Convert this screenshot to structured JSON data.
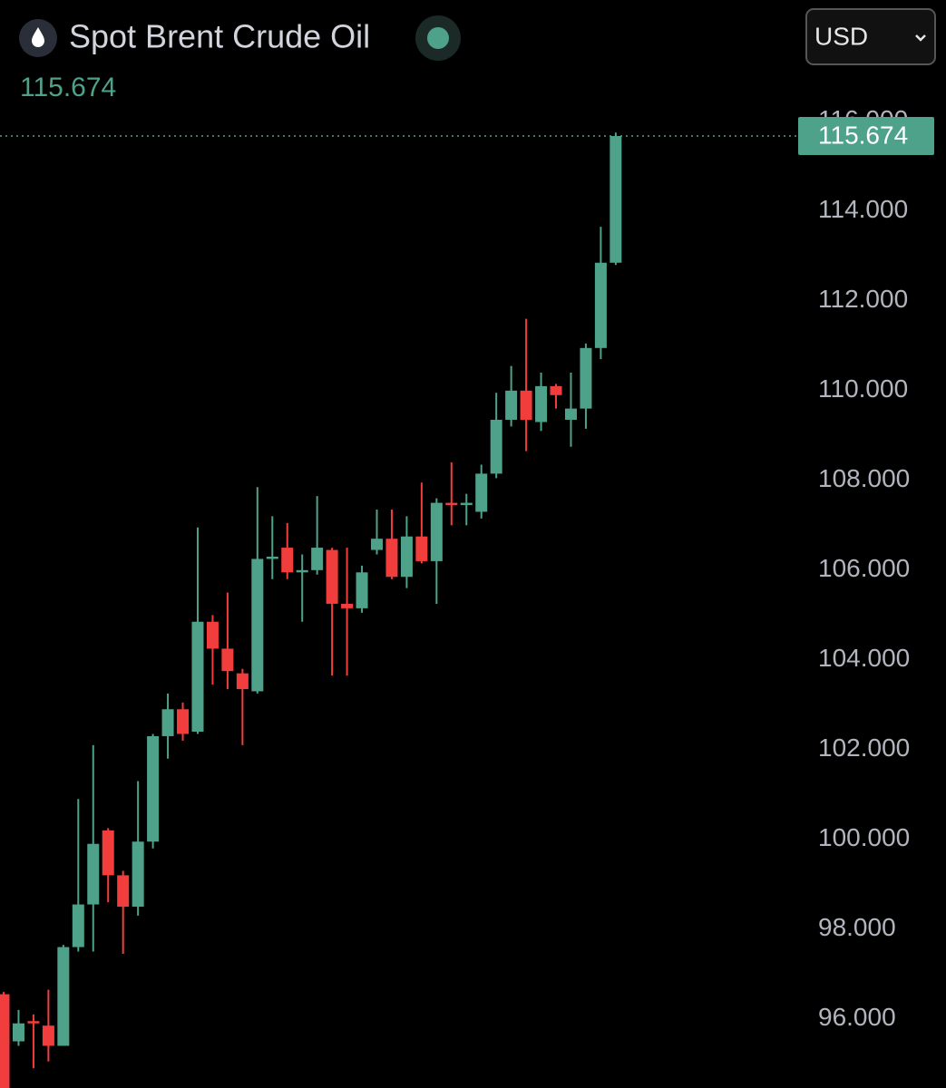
{
  "chart_data": {
    "type": "candlestick",
    "title": "Spot Brent Crude Oil",
    "currency": "USD",
    "last_price": 115.674,
    "last_price_label": "115.674",
    "up_color": "#4fa28a",
    "down_color": "#f23d3d",
    "ylim": [
      94.46,
      116.28
    ],
    "yticks": [
      {
        "value": 96,
        "label": "96.000"
      },
      {
        "value": 98,
        "label": "98.000"
      },
      {
        "value": 100,
        "label": "100.000"
      },
      {
        "value": 102,
        "label": "102.000"
      },
      {
        "value": 104,
        "label": "104.000"
      },
      {
        "value": 106,
        "label": "106.000"
      },
      {
        "value": 108,
        "label": "108.000"
      },
      {
        "value": 110,
        "label": "110.000"
      },
      {
        "value": 112,
        "label": "112.000"
      },
      {
        "value": 114,
        "label": "114.000"
      },
      {
        "value": 116,
        "label": "116.000"
      }
    ],
    "open": [
      96.55,
      95.5,
      95.95,
      95.85,
      95.4,
      97.6,
      98.55,
      100.2,
      99.2,
      98.5,
      99.95,
      102.3,
      102.9,
      102.4,
      104.85,
      104.25,
      103.7,
      103.3,
      106.25,
      106.5,
      105.95,
      106.0,
      106.45,
      105.25,
      105.15,
      106.45,
      106.7,
      105.85,
      106.75,
      106.2,
      107.5,
      107.45,
      107.3,
      108.15,
      109.35,
      110.0,
      109.3,
      110.1,
      109.35,
      109.6,
      110.95,
      112.85
    ],
    "high": [
      96.6,
      96.2,
      96.1,
      96.65,
      97.65,
      100.9,
      102.1,
      100.25,
      99.3,
      101.3,
      102.35,
      103.25,
      103.05,
      106.95,
      105.0,
      105.5,
      103.8,
      107.85,
      107.2,
      107.05,
      106.35,
      107.65,
      106.5,
      106.5,
      106.1,
      107.35,
      107.35,
      107.2,
      107.95,
      107.6,
      108.4,
      107.7,
      108.35,
      109.95,
      110.55,
      111.6,
      110.4,
      110.15,
      110.4,
      111.05,
      113.65,
      115.75
    ],
    "low": [
      94.2,
      95.4,
      94.9,
      95.05,
      95.4,
      97.5,
      97.5,
      98.6,
      97.45,
      98.3,
      99.8,
      101.8,
      102.2,
      102.35,
      103.45,
      103.35,
      102.1,
      103.25,
      105.8,
      105.8,
      104.85,
      105.9,
      103.65,
      103.65,
      105.05,
      106.35,
      105.8,
      105.6,
      106.15,
      105.25,
      107.0,
      107.0,
      107.15,
      108.05,
      109.2,
      108.65,
      109.1,
      109.6,
      108.75,
      109.15,
      110.7,
      112.8
    ],
    "close": [
      94.4,
      95.9,
      95.9,
      95.4,
      97.6,
      98.55,
      99.9,
      99.2,
      98.5,
      99.95,
      102.3,
      102.9,
      102.35,
      104.85,
      104.25,
      103.75,
      103.35,
      106.25,
      106.3,
      105.95,
      106.0,
      106.5,
      105.25,
      105.15,
      105.95,
      106.7,
      105.85,
      106.75,
      106.2,
      107.5,
      107.45,
      107.5,
      108.15,
      109.35,
      110.0,
      109.35,
      110.1,
      109.9,
      109.6,
      110.95,
      112.85,
      115.674
    ]
  }
}
